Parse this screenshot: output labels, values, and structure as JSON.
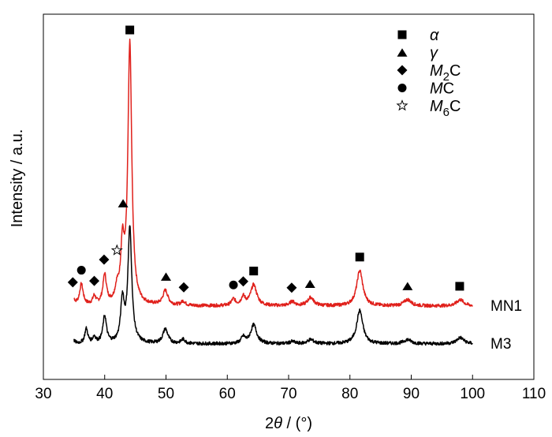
{
  "chart_data": {
    "type": "line",
    "xlabel_prefix": "2",
    "xlabel_theta": "θ",
    "xlabel_unit": " / (°)",
    "ylabel": "Intensity / a.u.",
    "xlim": [
      30,
      110
    ],
    "x_ticks": [
      30,
      40,
      50,
      60,
      70,
      80,
      90,
      100,
      110
    ],
    "y_ticks_shown": false,
    "legend_position": "top-right",
    "legend": [
      {
        "symbol": "square",
        "italic": "α",
        "suffix": ""
      },
      {
        "symbol": "triangle",
        "italic": "γ",
        "suffix": ""
      },
      {
        "symbol": "diamond",
        "italic": "M",
        "sub": "2",
        "suffix": "C"
      },
      {
        "symbol": "circle",
        "italic": "M",
        "sub": "",
        "suffix": "C"
      },
      {
        "symbol": "star",
        "italic": "M",
        "sub": "6",
        "suffix": "C"
      }
    ],
    "series": [
      {
        "name": "MN1",
        "color": "#e0201b",
        "baseline": 10,
        "peaks": [
          {
            "x": 34.8,
            "h": 4,
            "w": 0.3
          },
          {
            "x": 36.2,
            "h": 10,
            "w": 0.35
          },
          {
            "x": 38.3,
            "h": 4,
            "w": 0.3
          },
          {
            "x": 40.0,
            "h": 14,
            "w": 0.35
          },
          {
            "x": 42.0,
            "h": 6,
            "w": 0.35
          },
          {
            "x": 42.9,
            "h": 26,
            "w": 0.35
          },
          {
            "x": 44.1,
            "h": 125,
            "w": 0.38
          },
          {
            "x": 49.9,
            "h": 7,
            "w": 0.5
          },
          {
            "x": 52.8,
            "h": 2,
            "w": 0.4
          },
          {
            "x": 61.0,
            "h": 3,
            "w": 0.4
          },
          {
            "x": 62.6,
            "h": 4,
            "w": 0.4
          },
          {
            "x": 64.3,
            "h": 10,
            "w": 0.6
          },
          {
            "x": 70.6,
            "h": 2,
            "w": 0.5
          },
          {
            "x": 73.6,
            "h": 4,
            "w": 0.6
          },
          {
            "x": 81.6,
            "h": 17,
            "w": 0.6
          },
          {
            "x": 89.4,
            "h": 3,
            "w": 0.7
          },
          {
            "x": 98.0,
            "h": 3,
            "w": 0.7
          }
        ]
      },
      {
        "name": "M3",
        "color": "#000000",
        "baseline": 0,
        "peaks": [
          {
            "x": 34.8,
            "h": 2,
            "w": 0.3
          },
          {
            "x": 37.0,
            "h": 7,
            "w": 0.3
          },
          {
            "x": 38.3,
            "h": 3,
            "w": 0.3
          },
          {
            "x": 40.0,
            "h": 13,
            "w": 0.35
          },
          {
            "x": 42.9,
            "h": 20,
            "w": 0.35
          },
          {
            "x": 44.1,
            "h": 55,
            "w": 0.38
          },
          {
            "x": 49.9,
            "h": 7,
            "w": 0.5
          },
          {
            "x": 52.8,
            "h": 2,
            "w": 0.4
          },
          {
            "x": 62.6,
            "h": 3,
            "w": 0.4
          },
          {
            "x": 64.3,
            "h": 9,
            "w": 0.6
          },
          {
            "x": 70.6,
            "h": 1,
            "w": 0.5
          },
          {
            "x": 73.6,
            "h": 2,
            "w": 0.6
          },
          {
            "x": 81.6,
            "h": 16,
            "w": 0.6
          },
          {
            "x": 89.4,
            "h": 2,
            "w": 0.7
          },
          {
            "x": 98.0,
            "h": 3,
            "w": 0.7
          }
        ]
      }
    ],
    "markers": [
      {
        "symbol": "square",
        "x": 44.1
      },
      {
        "symbol": "triangle",
        "x": 43.0
      },
      {
        "symbol": "circle",
        "x": 36.2
      },
      {
        "symbol": "diamond",
        "x": 39.9
      },
      {
        "symbol": "diamond",
        "x": 34.8
      },
      {
        "symbol": "diamond",
        "x": 38.3
      },
      {
        "symbol": "star",
        "x": 42.0
      },
      {
        "symbol": "triangle",
        "x": 50.0
      },
      {
        "symbol": "diamond",
        "x": 52.9
      },
      {
        "symbol": "circle",
        "x": 61.0
      },
      {
        "symbol": "diamond",
        "x": 62.6
      },
      {
        "symbol": "square",
        "x": 64.3
      },
      {
        "symbol": "diamond",
        "x": 70.5
      },
      {
        "symbol": "triangle",
        "x": 73.5
      },
      {
        "symbol": "square",
        "x": 81.6
      },
      {
        "symbol": "triangle",
        "x": 89.4
      },
      {
        "symbol": "square",
        "x": 97.9
      }
    ]
  }
}
